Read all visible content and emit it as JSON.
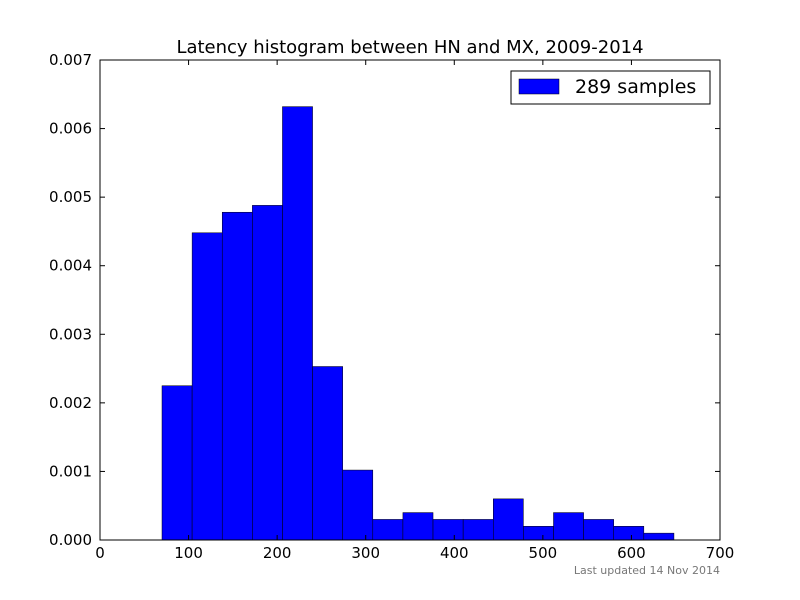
{
  "chart_data": {
    "type": "bar",
    "title": "Latency histogram between HN and MX, 2009-2014",
    "xlabel": "",
    "ylabel": "",
    "xlim": [
      0,
      700
    ],
    "ylim": [
      0,
      0.007
    ],
    "x_ticks": [
      "0",
      "100",
      "200",
      "300",
      "400",
      "500",
      "600",
      "700"
    ],
    "y_ticks": [
      "0.000",
      "0.001",
      "0.002",
      "0.003",
      "0.004",
      "0.005",
      "0.006",
      "0.007"
    ],
    "bin_edges": [
      70,
      104,
      138,
      172,
      206,
      240,
      274,
      308,
      342,
      376,
      410,
      444,
      478,
      512,
      546,
      580,
      614,
      648
    ],
    "values": [
      0.00225,
      0.00448,
      0.00478,
      0.00488,
      0.00632,
      0.00253,
      0.00102,
      0.0003,
      0.0004,
      0.0003,
      0.0003,
      0.0006,
      0.0002,
      0.0004,
      0.0003,
      0.0002,
      0.0001
    ],
    "grid": false,
    "legend": {
      "position": "top-right",
      "entries": [
        {
          "label": "289 samples",
          "color": "#0000ff"
        }
      ]
    },
    "bar_color": "#0000ff"
  },
  "footnote": "Last updated 14 Nov 2014"
}
